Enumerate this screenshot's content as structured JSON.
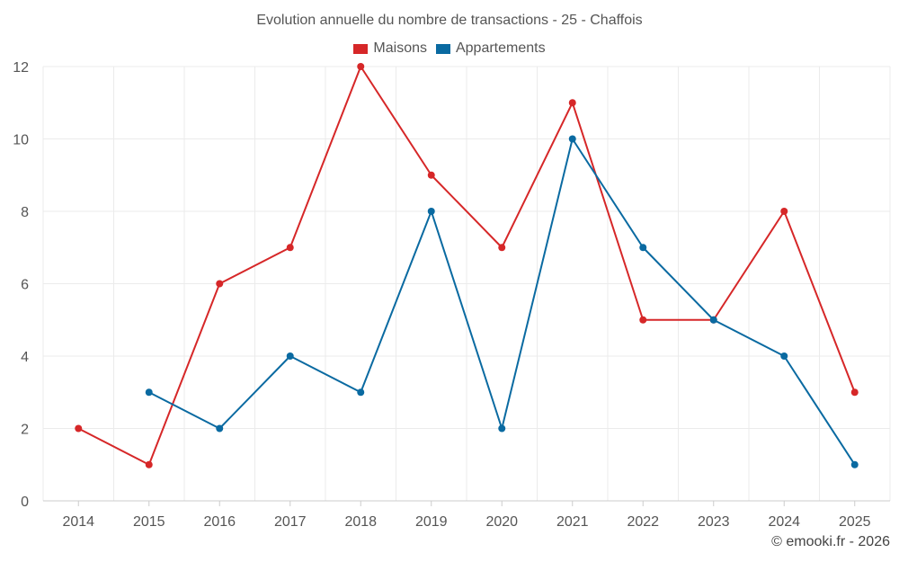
{
  "chart_data": {
    "type": "line",
    "title": "Evolution annuelle du nombre de transactions - 25 - Chaffois",
    "xlabel": "",
    "ylabel": "",
    "categories": [
      "2014",
      "2015",
      "2016",
      "2017",
      "2018",
      "2019",
      "2020",
      "2021",
      "2022",
      "2023",
      "2024",
      "2025"
    ],
    "series": [
      {
        "name": "Maisons",
        "color": "#d62728",
        "values": [
          2,
          1,
          6,
          7,
          12,
          9,
          7,
          11,
          5,
          5,
          8,
          3
        ]
      },
      {
        "name": "Appartements",
        "color": "#0a6aa1",
        "values": [
          null,
          3,
          2,
          4,
          3,
          8,
          2,
          10,
          7,
          5,
          4,
          1
        ]
      }
    ],
    "ylim": [
      0,
      12
    ],
    "yticks": [
      0,
      2,
      4,
      6,
      8,
      10,
      12
    ],
    "grid": true,
    "legend_position": "top-center"
  },
  "credit": "© emooki.fr - 2026"
}
